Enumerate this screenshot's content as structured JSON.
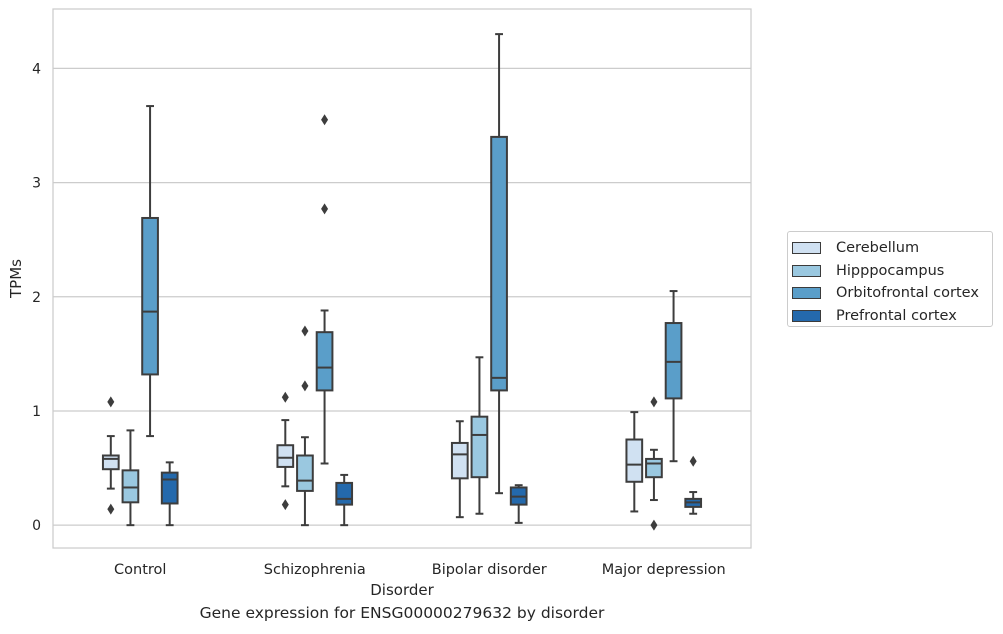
{
  "chart_data": {
    "type": "boxplot",
    "title": "",
    "caption": "Gene expression for ENSG00000279632 by disorder",
    "xlabel": "Disorder",
    "ylabel": "TPMs",
    "ylim": [
      -0.2,
      4.52
    ],
    "yticks": [
      0,
      1,
      2,
      3,
      4
    ],
    "grid": "horizontal",
    "legend_position": "right",
    "categories": [
      "Control",
      "Schizophrenia",
      "Bipolar disorder",
      "Major depression"
    ],
    "series": [
      {
        "name": "Cerebellum",
        "color": "#d0e1f2",
        "boxes": [
          {
            "whislo": 0.32,
            "q1": 0.49,
            "med": 0.58,
            "q3": 0.61,
            "whishi": 0.78,
            "fliers": [
              1.08,
              0.14
            ]
          },
          {
            "whislo": 0.34,
            "q1": 0.51,
            "med": 0.59,
            "q3": 0.7,
            "whishi": 0.92,
            "fliers": [
              1.12,
              0.18
            ]
          },
          {
            "whislo": 0.07,
            "q1": 0.41,
            "med": 0.62,
            "q3": 0.72,
            "whishi": 0.91,
            "fliers": []
          },
          {
            "whislo": 0.12,
            "q1": 0.38,
            "med": 0.53,
            "q3": 0.75,
            "whishi": 0.99,
            "fliers": []
          }
        ]
      },
      {
        "name": "Hipppocampus",
        "color": "#9ac8e0",
        "boxes": [
          {
            "whislo": 0.0,
            "q1": 0.2,
            "med": 0.33,
            "q3": 0.48,
            "whishi": 0.83,
            "fliers": []
          },
          {
            "whislo": 0.0,
            "q1": 0.3,
            "med": 0.39,
            "q3": 0.61,
            "whishi": 0.77,
            "fliers": [
              1.7,
              1.22
            ]
          },
          {
            "whislo": 0.1,
            "q1": 0.42,
            "med": 0.79,
            "q3": 0.95,
            "whishi": 1.47,
            "fliers": []
          },
          {
            "whislo": 0.22,
            "q1": 0.42,
            "med": 0.54,
            "q3": 0.58,
            "whishi": 0.66,
            "fliers": [
              1.08,
              0.0
            ]
          }
        ]
      },
      {
        "name": "Orbitofrontal cortex",
        "color": "#5a9ec9",
        "boxes": [
          {
            "whislo": 0.78,
            "q1": 1.32,
            "med": 1.87,
            "q3": 2.69,
            "whishi": 3.67,
            "fliers": []
          },
          {
            "whislo": 0.54,
            "q1": 1.18,
            "med": 1.38,
            "q3": 1.69,
            "whishi": 1.88,
            "fliers": [
              3.55,
              2.77
            ]
          },
          {
            "whislo": 0.28,
            "q1": 1.18,
            "med": 1.29,
            "q3": 3.4,
            "whishi": 4.3,
            "fliers": []
          },
          {
            "whislo": 0.56,
            "q1": 1.11,
            "med": 1.43,
            "q3": 1.77,
            "whishi": 2.05,
            "fliers": []
          }
        ]
      },
      {
        "name": "Prefrontal cortex",
        "color": "#2469ac",
        "boxes": [
          {
            "whislo": 0.0,
            "q1": 0.19,
            "med": 0.4,
            "q3": 0.46,
            "whishi": 0.55,
            "fliers": []
          },
          {
            "whislo": 0.0,
            "q1": 0.18,
            "med": 0.23,
            "q3": 0.37,
            "whishi": 0.44,
            "fliers": []
          },
          {
            "whislo": 0.02,
            "q1": 0.18,
            "med": 0.25,
            "q3": 0.33,
            "whishi": 0.35,
            "fliers": []
          },
          {
            "whislo": 0.1,
            "q1": 0.16,
            "med": 0.2,
            "q3": 0.23,
            "whishi": 0.29,
            "fliers": [
              0.56
            ]
          }
        ]
      }
    ]
  }
}
